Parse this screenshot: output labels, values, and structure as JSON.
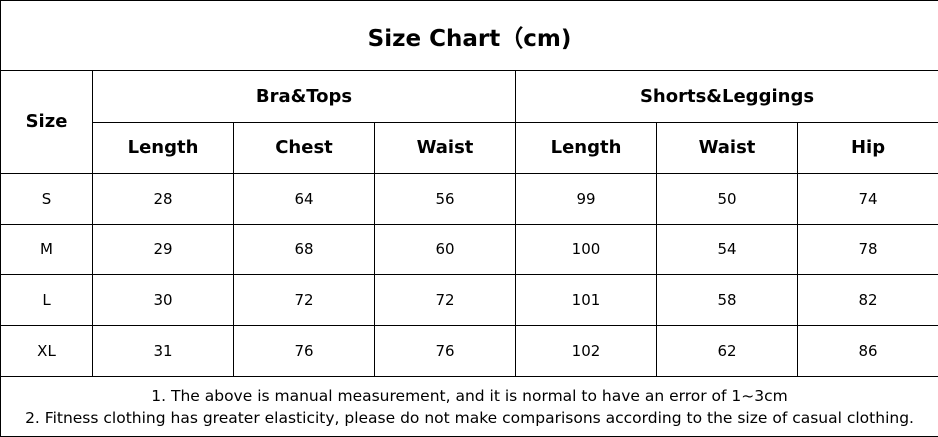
{
  "title": "Size Chart（cm)",
  "size_header": "Size",
  "groups": [
    "Bra&Tops",
    "Shorts&Leggings"
  ],
  "columns": [
    "Length",
    "Chest",
    "Waist",
    "Length",
    "Waist",
    "Hip"
  ],
  "rows": [
    {
      "size": "S",
      "values": [
        "28",
        "64",
        "56",
        "99",
        "50",
        "74"
      ]
    },
    {
      "size": "M",
      "values": [
        "29",
        "68",
        "60",
        "100",
        "54",
        "78"
      ]
    },
    {
      "size": "L",
      "values": [
        "30",
        "72",
        "72",
        "101",
        "58",
        "82"
      ]
    },
    {
      "size": "XL",
      "values": [
        "31",
        "76",
        "76",
        "102",
        "62",
        "86"
      ]
    }
  ],
  "notes": [
    "1. The above is manual measurement, and it is normal to have an error of 1~3cm",
    "2. Fitness clothing has greater elasticity, please do not make comparisons according to the size of casual clothing."
  ]
}
